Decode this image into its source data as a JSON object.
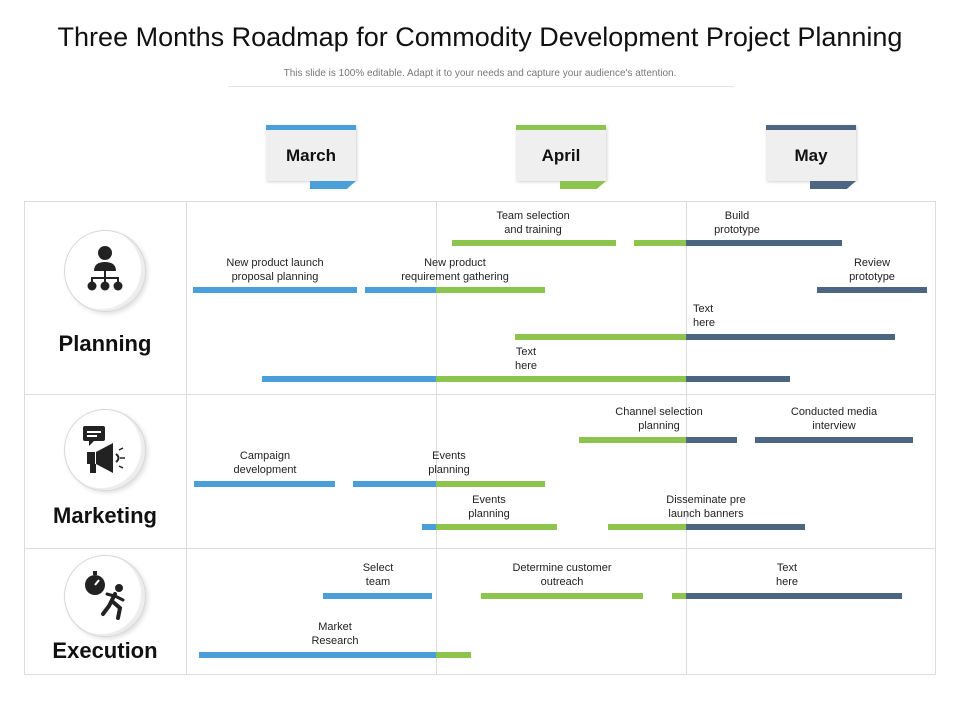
{
  "title": "Three Months Roadmap for Commodity Development Project Planning",
  "subtitle": "This slide is 100% editable. Adapt it to your needs and capture your audience's attention.",
  "colors": {
    "march": "#4a9fd8",
    "april": "#8dc44d",
    "may": "#4c6580"
  },
  "months": [
    {
      "label": "March"
    },
    {
      "label": "April"
    },
    {
      "label": "May"
    }
  ],
  "rows": [
    {
      "label": "Planning",
      "icon": "org-chart-person-icon"
    },
    {
      "label": "Marketing",
      "icon": "megaphone-chat-icon"
    },
    {
      "label": "Execution",
      "icon": "stopwatch-runner-icon"
    }
  ],
  "tasks": [
    {
      "name": "Team selection\nand training"
    },
    {
      "name": "Build\nprototype"
    },
    {
      "name": "New product launch\nproposal planning"
    },
    {
      "name": "New product\nrequirement gathering"
    },
    {
      "name": "Review\nprototype"
    },
    {
      "name": "Text\nhere"
    },
    {
      "name": "Text\nhere"
    },
    {
      "name": "Channel selection\nplanning"
    },
    {
      "name": "Conducted media\ninterview"
    },
    {
      "name": "Campaign\ndevelopment"
    },
    {
      "name": "Events\nplanning"
    },
    {
      "name": "Events\nplanning"
    },
    {
      "name": "Disseminate pre\nlaunch banners"
    },
    {
      "name": "Select\nteam"
    },
    {
      "name": "Determine customer\noutreach"
    },
    {
      "name": "Text\nhere"
    },
    {
      "name": "Market\nResearch"
    }
  ]
}
